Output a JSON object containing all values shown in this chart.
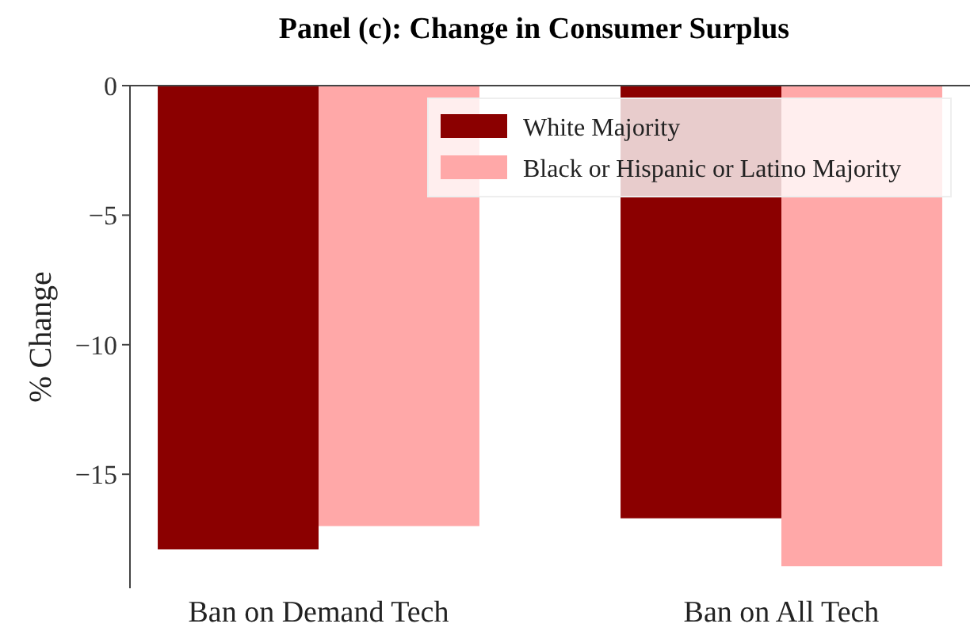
{
  "chart_data": {
    "type": "bar",
    "title": "Panel (c): Change in Consumer Surplus",
    "ylabel": "% Change",
    "categories": [
      "Ban on Demand Tech",
      "Ban on All Tech"
    ],
    "series": [
      {
        "name": "White Majority",
        "color": "#8b0000",
        "values": [
          -17.9,
          -16.7
        ]
      },
      {
        "name": "Black or Hispanic or Latino Majority",
        "color": "#ffa8a8",
        "values": [
          -17.0,
          -18.55
        ]
      }
    ],
    "ylim": [
      -19.4,
      0
    ],
    "yticks": [
      0,
      -5,
      -10,
      -15
    ],
    "grid": false,
    "legend": "top right"
  }
}
